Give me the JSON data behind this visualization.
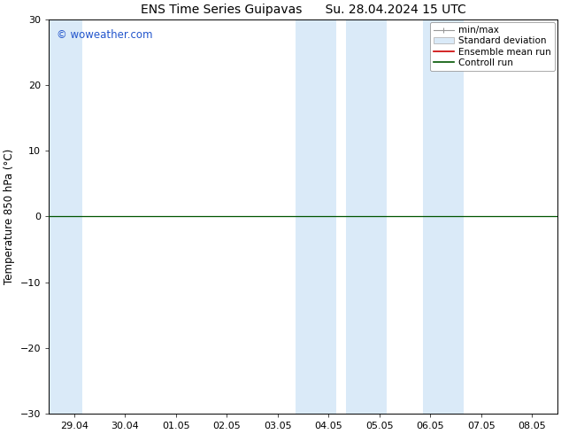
{
  "title_left": "ENS Time Series Guipavas",
  "title_right": "Su. 28.04.2024 15 UTC",
  "ylabel": "Temperature 850 hPa (°C)",
  "watermark": "© woweather.com",
  "watermark_color": "#2255cc",
  "ylim": [
    -30,
    30
  ],
  "yticks": [
    -30,
    -20,
    -10,
    0,
    10,
    20,
    30
  ],
  "xtick_labels": [
    "29.04",
    "30.04",
    "01.05",
    "02.05",
    "03.05",
    "04.05",
    "05.05",
    "06.05",
    "07.05",
    "08.05"
  ],
  "xtick_positions": [
    0,
    1,
    2,
    3,
    4,
    5,
    6,
    7,
    8,
    9
  ],
  "xlim": [
    -0.5,
    9.5
  ],
  "zero_line_color": "#005500",
  "shaded_bands": [
    {
      "x_start": -0.5,
      "x_end": 0.15,
      "color": "#daeaf8"
    },
    {
      "x_start": 4.35,
      "x_end": 5.15,
      "color": "#daeaf8"
    },
    {
      "x_start": 5.35,
      "x_end": 6.15,
      "color": "#daeaf8"
    },
    {
      "x_start": 6.85,
      "x_end": 7.65,
      "color": "#daeaf8"
    }
  ],
  "legend_labels": [
    "min/max",
    "Standard deviation",
    "Ensemble mean run",
    "Controll run"
  ],
  "bg_color": "#ffffff",
  "title_fontsize": 10,
  "label_fontsize": 8.5,
  "tick_fontsize": 8
}
